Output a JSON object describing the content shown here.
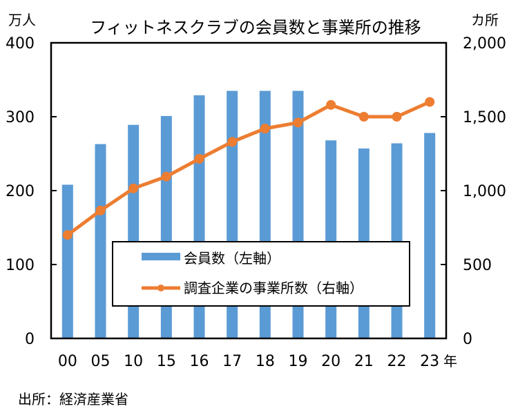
{
  "chart_data": {
    "type": "bar+line",
    "title": "フィットネスクラブの会員数と事業所の推移",
    "categories": [
      "00",
      "05",
      "10",
      "15",
      "16",
      "17",
      "18",
      "19",
      "20",
      "21",
      "22",
      "23"
    ],
    "x_unit": "年",
    "left_axis": {
      "unit": "万人",
      "ylim": [
        0,
        400
      ],
      "ticks": [
        "0",
        "100",
        "200",
        "300",
        "400"
      ]
    },
    "right_axis": {
      "unit": "カ所",
      "ylim": [
        0,
        2000
      ],
      "ticks": [
        "0",
        "500",
        "1,000",
        "1,500",
        "2,000"
      ]
    },
    "series": [
      {
        "name": "会員数（左軸）",
        "type": "bar",
        "axis": "left",
        "color": "#5b9bd5",
        "values": [
          208,
          263,
          289,
          301,
          329,
          335,
          335,
          335,
          268,
          257,
          264,
          278
        ]
      },
      {
        "name": "調査企業の事業所数（右軸）",
        "type": "line",
        "axis": "right",
        "color": "#ed7d31",
        "values": [
          700,
          865,
          1015,
          1095,
          1215,
          1330,
          1420,
          1460,
          1580,
          1500,
          1500,
          1600
        ]
      }
    ],
    "legend_position": "bottom-center-inside",
    "grid": false
  },
  "source": "出所：経済産業省"
}
